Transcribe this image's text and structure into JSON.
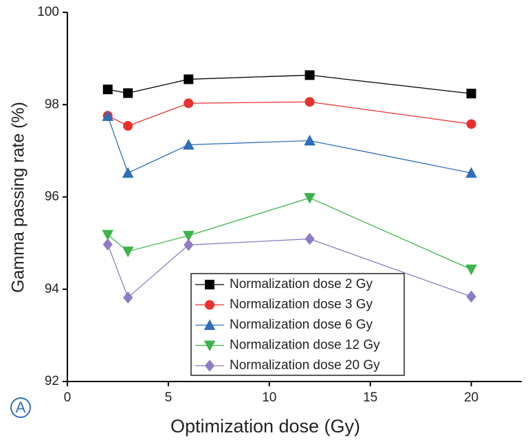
{
  "chart_data": {
    "type": "line",
    "x_label": "Optimization dose (Gy)",
    "y_label": "Gamma passing rate (%)",
    "panel_label": "A",
    "x": [
      2,
      3,
      6,
      12,
      20
    ],
    "xlim": [
      0,
      22.5
    ],
    "xticks": [
      0,
      5,
      10,
      15,
      20
    ],
    "ylim": [
      92,
      100
    ],
    "yticks": [
      92,
      94,
      96,
      98,
      100
    ],
    "legend": "bottom-center",
    "series": [
      {
        "name": "Normalization dose 2 Gy",
        "color": "#000000",
        "marker": "square",
        "values": [
          98.33,
          98.25,
          98.55,
          98.64,
          98.24
        ]
      },
      {
        "name": "Normalization dose 3 Gy",
        "color": "#e8302e",
        "marker": "circle",
        "values": [
          97.76,
          97.54,
          98.03,
          98.06,
          97.58
        ]
      },
      {
        "name": "Normalization dose 6 Gy",
        "color": "#2f6fba",
        "marker": "triangle-up",
        "values": [
          97.75,
          96.52,
          97.13,
          97.22,
          96.52
        ]
      },
      {
        "name": "Normalization dose 12 Gy",
        "color": "#3cb44b",
        "marker": "triangle-down",
        "values": [
          95.18,
          94.82,
          95.16,
          95.98,
          94.43
        ]
      },
      {
        "name": "Normalization dose 20 Gy",
        "color": "#8e7cc3",
        "marker": "diamond",
        "values": [
          94.97,
          93.82,
          94.96,
          95.09,
          93.84
        ]
      }
    ]
  }
}
